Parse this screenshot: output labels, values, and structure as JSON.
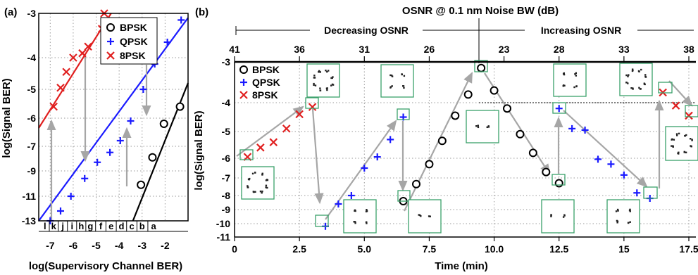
{
  "chart_data": [
    {
      "panel_label": "(a)",
      "type": "scatter",
      "xlabel": "log(Supervisory Channel BER)",
      "ylabel": "log(Signal BER)",
      "xlim": [
        -7.5,
        -1
      ],
      "ylim": [
        -13,
        -3
      ],
      "x_ticks": [
        "-7",
        "-6",
        "-5",
        "-4",
        "-3",
        "-2"
      ],
      "x_tick_values": [
        -7,
        -6,
        -5,
        -4,
        -3,
        -2
      ],
      "y_ticks": [
        "-3",
        "-4",
        "-5",
        "-6",
        "-7",
        "-9",
        "-11",
        "-13"
      ],
      "y_tick_values": [
        -3,
        -4,
        -5,
        -6,
        -7,
        -9,
        -11,
        -13
      ],
      "letter_labels": [
        "l",
        "k",
        "j",
        "i",
        "h",
        "g",
        "f",
        "e",
        "d",
        "c",
        "b",
        "a"
      ],
      "letter_x": [
        -7.23,
        -6.85,
        -6.45,
        -6.05,
        -5.65,
        -5.25,
        -4.8,
        -4.35,
        -3.9,
        -3.45,
        -3.0,
        -2.5
      ],
      "grid": true,
      "legend_position": "top-right",
      "series": [
        {
          "name": "BPSK",
          "marker": "circle",
          "color": "#000000",
          "x": [
            -3.05,
            -2.55,
            -2.05,
            -1.35
          ],
          "y": [
            -10.1,
            -7.9,
            -6.2,
            -5.6
          ],
          "fit": [
            [
              -3.4,
              -13
            ],
            [
              -1.0,
              -4.8
            ]
          ]
        },
        {
          "name": "QPSK",
          "marker": "plus",
          "color": "#1a1aff",
          "x": [
            -7.0,
            -6.55,
            -6.1,
            -5.5,
            -4.95,
            -4.4,
            -3.95,
            -3.5,
            -2.95,
            -2.45,
            -1.9,
            -1.3
          ],
          "y": [
            -13.0,
            -12.2,
            -11.0,
            -9.6,
            -8.3,
            -7.5,
            -6.8,
            -6.1,
            -5.0,
            -4.2,
            -3.65,
            -3.15
          ],
          "fit": [
            [
              -7.5,
              -13
            ],
            [
              -1.0,
              -3.1
            ]
          ]
        },
        {
          "name": "8PSK",
          "marker": "x",
          "color": "#e01f1f",
          "x": [
            -6.85,
            -6.55,
            -6.3,
            -6.0,
            -5.6,
            -5.35,
            -4.75,
            -4.65
          ],
          "y": [
            -5.6,
            -4.95,
            -4.45,
            -4.0,
            -3.9,
            -3.75,
            -3.35,
            -3.0
          ],
          "fit": [
            [
              -7.5,
              -6.35
            ],
            [
              -4.35,
              -3.0
            ]
          ]
        }
      ],
      "insets": []
    },
    {
      "panel_label": "(b)",
      "type": "scatter",
      "title": "OSNR @ 0.1 nm Noise BW (dB)",
      "xlabel": "Time (min)",
      "ylabel": "log(Signal BER)",
      "xlim": [
        0,
        17.5
      ],
      "ylim": [
        -11,
        -3
      ],
      "x_ticks": [
        "0",
        "2.5",
        "5.0",
        "7.5",
        "10.0",
        "12.5",
        "15",
        "17.5"
      ],
      "x_tick_values": [
        0,
        2.5,
        5.0,
        7.5,
        10.0,
        12.5,
        15,
        17.5
      ],
      "y_ticks": [
        "-3",
        "-4",
        "-5",
        "-6",
        "-7",
        "-8",
        "-9",
        "-10",
        "-11"
      ],
      "y_tick_values": [
        -3,
        -4,
        -5,
        -6,
        -7,
        -8,
        -9,
        -10,
        -11
      ],
      "top_axis_ticks": [
        "41",
        "36",
        "31",
        "26",
        "23",
        "28",
        "33",
        "38"
      ],
      "top_axis_positions": [
        0,
        2.5,
        5,
        7.5,
        10,
        12.5,
        15,
        17.5
      ],
      "section_left": "Decreasing OSNR",
      "section_right": "Increasing OSNR",
      "grid": true,
      "legend_position": "top-left",
      "series": [
        {
          "name": "BPSK",
          "marker": "circle",
          "color": "#000000",
          "x": [
            6.5,
            7.0,
            7.5,
            8.0,
            8.5,
            9.0,
            9.5,
            10.0,
            10.5,
            11.0,
            11.5,
            12.0,
            12.5
          ],
          "y": [
            -8.4,
            -7.35,
            -6.3,
            -5.35,
            -4.45,
            -3.8,
            -3.15,
            -3.7,
            -4.2,
            -5.1,
            -5.8,
            -6.7,
            -7.3
          ]
        },
        {
          "name": "QPSK",
          "marker": "plus",
          "color": "#1a1aff",
          "x": [
            3.5,
            4.0,
            4.5,
            5.0,
            5.5,
            6.0,
            6.5,
            12.5,
            13.0,
            13.5,
            14.0,
            14.5,
            15.0,
            15.5,
            16.0
          ],
          "y": [
            -10.2,
            -8.6,
            -8.0,
            -6.5,
            -5.95,
            -5.3,
            -4.5,
            -4.2,
            -4.9,
            -4.95,
            -6.05,
            -6.3,
            -6.85,
            -7.85,
            -8.2
          ]
        },
        {
          "name": "8PSK",
          "marker": "x",
          "color": "#e01f1f",
          "x": [
            0.5,
            1.0,
            1.5,
            2.0,
            2.5,
            3.0,
            16.5,
            17.0,
            17.5
          ],
          "y": [
            -5.95,
            -5.6,
            -5.4,
            -4.9,
            -4.4,
            -4.15,
            -3.75,
            -4.1,
            -4.45
          ]
        }
      ],
      "insets": []
    }
  ]
}
